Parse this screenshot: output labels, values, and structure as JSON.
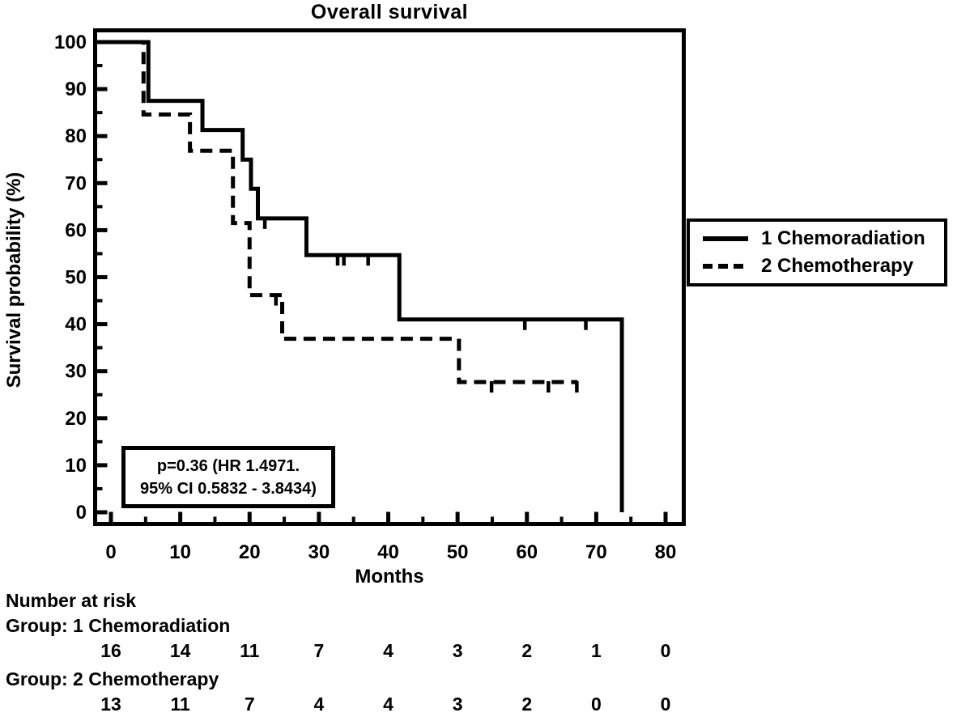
{
  "figure": {
    "title": "Overall survival",
    "background": "#ffffff",
    "ink": "#000000"
  },
  "axes": {
    "x": {
      "label": "Months",
      "min": 0,
      "max": 80,
      "major_ticks": [
        0,
        10,
        20,
        30,
        40,
        50,
        60,
        70,
        80
      ],
      "minor_step": 5
    },
    "y": {
      "label": "Survival probability (%)",
      "min": 0,
      "max": 100,
      "major_ticks": [
        0,
        10,
        20,
        30,
        40,
        50,
        60,
        70,
        80,
        90,
        100
      ],
      "minor_step": 5
    }
  },
  "legend": {
    "items": [
      {
        "label": "1 Chemoradiation",
        "line_style": "solid"
      },
      {
        "label": "2 Chemotherapy",
        "line_style": "dashed"
      }
    ]
  },
  "annotation": {
    "line1": "p=0.36 (HR 1.4971.",
    "line2": "95% CI 0.5832 - 3.8434)"
  },
  "number_at_risk": {
    "heading": "Number at risk",
    "time_points": [
      0,
      10,
      20,
      30,
      40,
      50,
      60,
      70,
      80
    ],
    "groups": [
      {
        "label": "Group: 1 Chemoradiation",
        "counts": [
          "16",
          "14",
          "11",
          "7",
          "4",
          "3",
          "2",
          "1",
          "0"
        ]
      },
      {
        "label": "Group: 2 Chemotherapy",
        "counts": [
          "13",
          "11",
          "7",
          "4",
          "4",
          "3",
          "2",
          "0",
          "0"
        ]
      }
    ]
  },
  "chart_data": {
    "type": "line",
    "subtype": "kaplan-meier-step",
    "title": "Overall survival",
    "xlabel": "Months",
    "ylabel": "Survival probability (%)",
    "xlim": [
      0,
      80
    ],
    "ylim": [
      0,
      100
    ],
    "grid": false,
    "legend_position": "right-outside",
    "series": [
      {
        "name": "1 Chemoradiation",
        "style": "solid",
        "n_start": 16,
        "steps": [
          [
            0,
            100
          ],
          [
            5.4,
            87.5
          ],
          [
            13.2,
            81.3
          ],
          [
            19.0,
            75.0
          ],
          [
            20.2,
            68.8
          ],
          [
            21.2,
            62.5
          ],
          [
            28.2,
            54.7
          ],
          [
            41.6,
            41.0
          ],
          [
            73.7,
            0
          ]
        ],
        "censor_marks": [
          [
            22.2,
            62.5
          ],
          [
            32.7,
            54.7
          ],
          [
            33.6,
            54.7
          ],
          [
            37.1,
            54.7
          ],
          [
            59.7,
            41.0
          ],
          [
            68.5,
            41.0
          ]
        ],
        "end_time": 73.7
      },
      {
        "name": "2 Chemotherapy",
        "style": "dashed",
        "n_start": 13,
        "steps": [
          [
            0,
            100
          ],
          [
            4.7,
            84.6
          ],
          [
            11.4,
            76.9
          ],
          [
            17.6,
            61.5
          ],
          [
            20.0,
            46.2
          ],
          [
            24.7,
            36.9
          ],
          [
            50.2,
            27.7
          ]
        ],
        "censor_marks": [
          [
            23.8,
            46.2
          ],
          [
            54.9,
            27.7
          ],
          [
            63.1,
            27.7
          ],
          [
            67.2,
            27.7
          ]
        ],
        "end_time": 67.3
      }
    ]
  }
}
